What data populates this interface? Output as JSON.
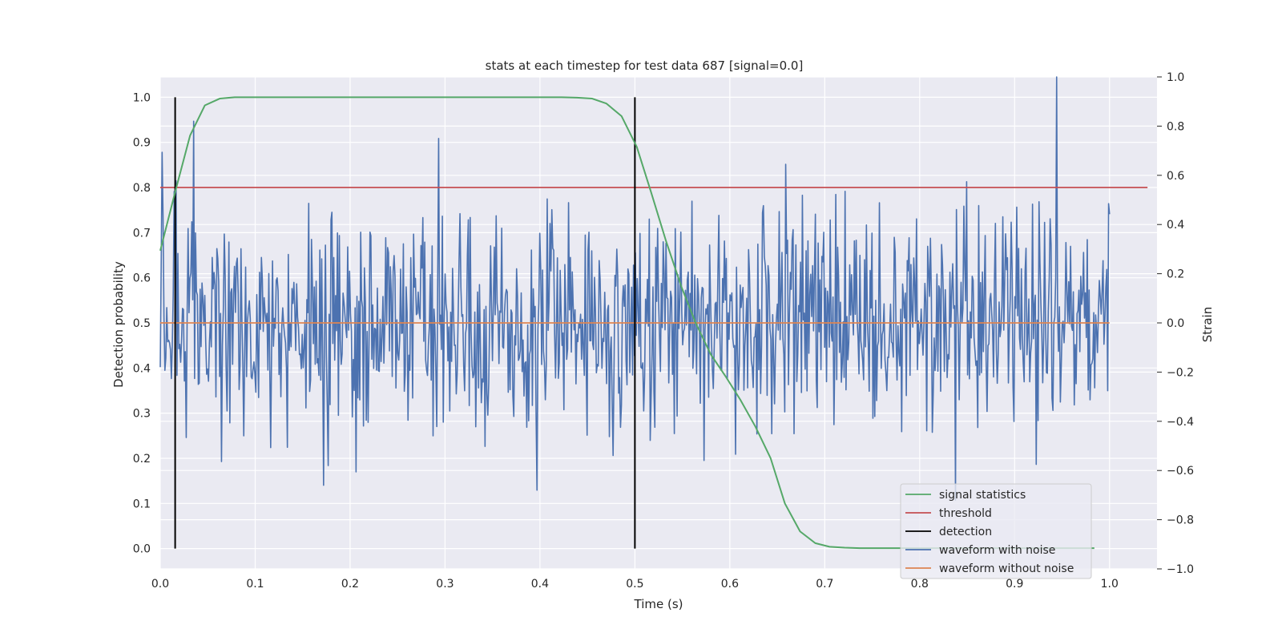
{
  "chart_data": {
    "type": "line",
    "title": "stats at each timestep for test data 687 [signal=0.0]",
    "xlabel": "Time (s)",
    "ylabel": "Detection probability",
    "y2label": "Strain",
    "xlim": [
      0.0,
      1.05
    ],
    "ylim": [
      -0.045,
      1.045
    ],
    "y2lim": [
      -1.0,
      1.0
    ],
    "xticks": [
      "0.0",
      "0.1",
      "0.2",
      "0.3",
      "0.4",
      "0.5",
      "0.6",
      "0.7",
      "0.8",
      "0.9",
      "1.0"
    ],
    "yticks": [
      "0.0",
      "0.1",
      "0.2",
      "0.3",
      "0.4",
      "0.5",
      "0.6",
      "0.7",
      "0.8",
      "0.9",
      "1.0"
    ],
    "y2ticks": [
      "−1.0",
      "−0.8",
      "−0.6",
      "−0.4",
      "−0.2",
      "0.0",
      "0.2",
      "0.4",
      "0.6",
      "0.8",
      "1.0"
    ],
    "grid": true,
    "legend_position": "lower-right",
    "colors": {
      "background": "#eaeaf2",
      "grid": "#ffffff",
      "signal": "#55a868",
      "threshold": "#c44e52",
      "detection": "#000000",
      "noise": "#4c72b0",
      "clean": "#dd8452"
    },
    "series": [
      {
        "name": "signal statistics",
        "axis": "left",
        "x": [
          0.0,
          0.0157,
          0.0314,
          0.047,
          0.0627,
          0.0784,
          0.094,
          0.11,
          0.125,
          0.141,
          0.157,
          0.172,
          0.188,
          0.204,
          0.22,
          0.235,
          0.251,
          0.267,
          0.282,
          0.298,
          0.314,
          0.329,
          0.345,
          0.361,
          0.376,
          0.392,
          0.408,
          0.423,
          0.439,
          0.455,
          0.47,
          0.486,
          0.502,
          0.517,
          0.533,
          0.549,
          0.564,
          0.58,
          0.596,
          0.611,
          0.627,
          0.643,
          0.658,
          0.674,
          0.69,
          0.705,
          0.721,
          0.737,
          0.752,
          0.768,
          0.784,
          0.8,
          0.815,
          0.831,
          0.847,
          0.862,
          0.878,
          0.894,
          0.909,
          0.925,
          0.941,
          0.956,
          0.972,
          0.984
        ],
        "y": [
          0.66,
          0.79,
          0.915,
          0.982,
          0.997,
          1.0,
          1.0,
          1.0,
          1.0,
          1.0,
          1.0,
          1.0,
          1.0,
          1.0,
          1.0,
          1.0,
          1.0,
          1.0,
          1.0,
          1.0,
          1.0,
          1.0,
          1.0,
          1.0,
          1.0,
          1.0,
          1.0,
          1.0,
          0.999,
          0.997,
          0.986,
          0.958,
          0.89,
          0.79,
          0.68,
          0.58,
          0.5,
          0.43,
          0.38,
          0.33,
          0.27,
          0.2,
          0.1,
          0.038,
          0.012,
          0.004,
          0.002,
          0.001,
          0.001,
          0.001,
          0.001,
          0.001,
          0.001,
          0.001,
          0.001,
          0.001,
          0.001,
          0.001,
          0.001,
          0.001,
          0.001,
          0.001,
          0.001,
          0.001
        ]
      },
      {
        "name": "threshold",
        "axis": "left",
        "x": [
          0.0,
          1.04
        ],
        "y": [
          0.8,
          0.8
        ]
      },
      {
        "name": "detection",
        "axis": "left",
        "segments": [
          {
            "x": 0.0157,
            "y0": 0.0,
            "y1": 1.0
          },
          {
            "x": 0.5,
            "y0": 0.0,
            "y1": 1.0
          }
        ]
      },
      {
        "name": "waveform with noise",
        "axis": "right",
        "description_points": 1024,
        "peaks": [
          {
            "x": 0.035,
            "y": 0.82
          },
          {
            "x": 0.293,
            "y": 0.75
          },
          {
            "x": 0.944,
            "y": 1.0
          },
          {
            "x": 0.838,
            "y": -0.72
          },
          {
            "x": 0.172,
            "y": -0.66
          },
          {
            "x": 0.397,
            "y": -0.68
          }
        ],
        "y_range": [
          -0.72,
          1.0
        ]
      },
      {
        "name": "waveform without noise",
        "axis": "right",
        "x": [
          0.0,
          1.0
        ],
        "y": [
          0.0,
          0.0
        ]
      }
    ],
    "legend": [
      "signal statistics",
      "threshold",
      "detection",
      "waveform with noise",
      "waveform without noise"
    ]
  }
}
